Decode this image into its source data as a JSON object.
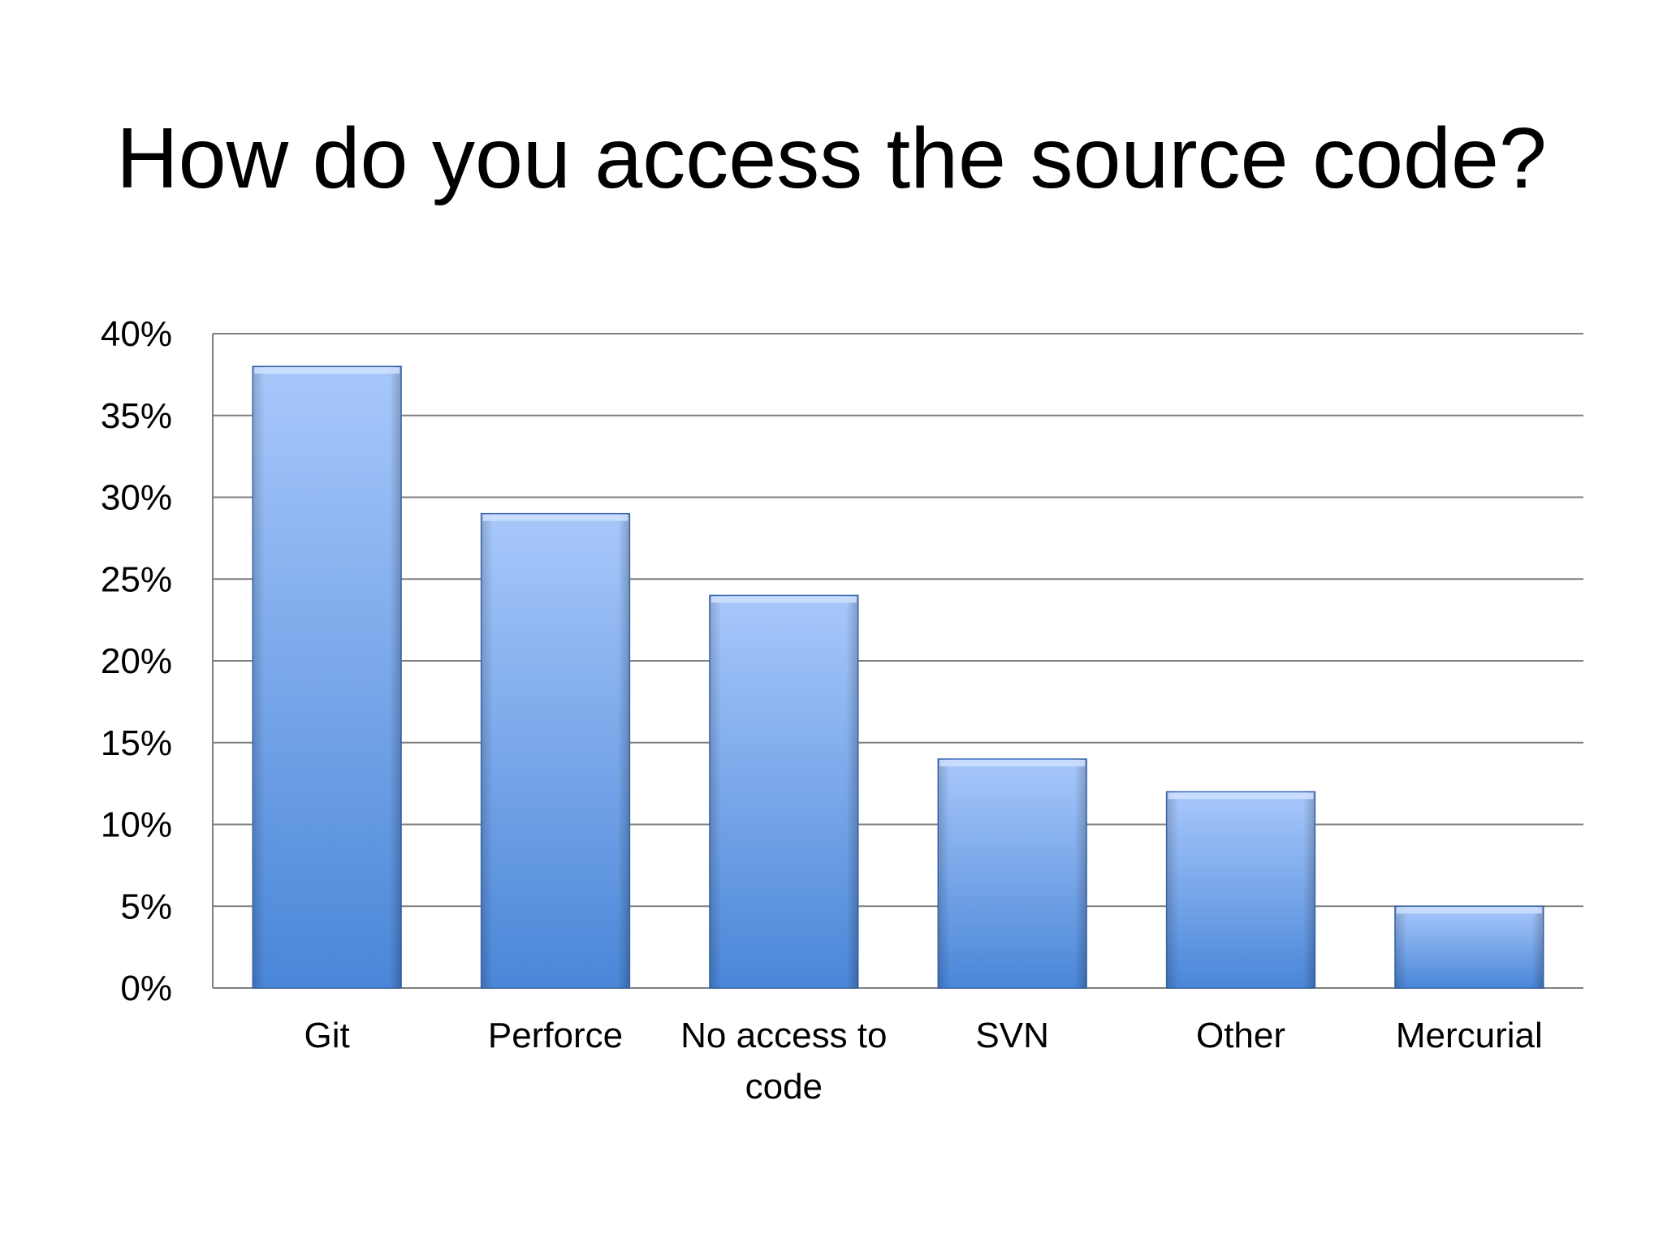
{
  "slide": {
    "title": "How do you access the source code?"
  },
  "chart_data": {
    "type": "bar",
    "categories": [
      "Git",
      "Perforce",
      "No access to code",
      "SVN",
      "Other",
      "Mercurial"
    ],
    "category_label_lines": [
      [
        "Git"
      ],
      [
        "Perforce"
      ],
      [
        "No access to",
        "code"
      ],
      [
        "SVN"
      ],
      [
        "Other"
      ],
      [
        "Mercurial"
      ]
    ],
    "values": [
      38,
      29,
      24,
      14,
      12,
      5
    ],
    "value_unit": "%",
    "ylim": [
      0,
      40
    ],
    "yticks": [
      0,
      5,
      10,
      15,
      20,
      25,
      30,
      35,
      40
    ],
    "ytick_labels": [
      "0%",
      "5%",
      "10%",
      "15%",
      "20%",
      "25%",
      "30%",
      "35%",
      "40%"
    ],
    "xlabel": "",
    "ylabel": "",
    "grid": true,
    "legend": "none",
    "colors": {
      "bar_top": "#a8c8fb",
      "bar_bottom": "#4a86d8",
      "bar_edge": "#3f6fb5",
      "gridline": "#7f7f7f",
      "axis": "#7f7f7f"
    }
  }
}
